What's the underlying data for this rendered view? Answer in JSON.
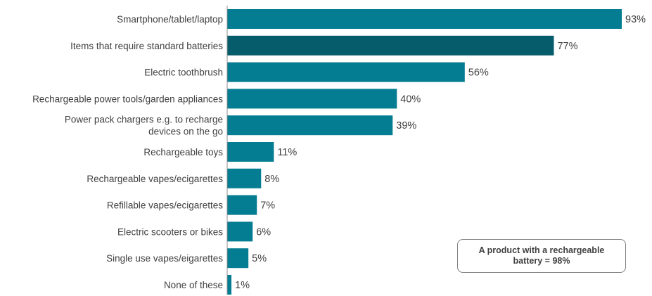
{
  "chart_data": {
    "type": "bar",
    "orientation": "horizontal",
    "categories": [
      [
        "Smartphone/tablet/laptop"
      ],
      [
        "Items that require standard batteries"
      ],
      [
        "Electric toothbrush"
      ],
      [
        "Rechargeable power tools/garden appliances"
      ],
      [
        "Power pack chargers e.g. to recharge",
        "devices on the go"
      ],
      [
        "Rechargeable toys"
      ],
      [
        "Rechargeable vapes/ecigarettes"
      ],
      [
        "Refillable vapes/ecigarettes"
      ],
      [
        "Electric scooters or bikes"
      ],
      [
        "Single use vapes/eigarettes"
      ],
      [
        "None of these"
      ]
    ],
    "values": [
      93,
      77,
      56,
      40,
      39,
      11,
      8,
      7,
      6,
      5,
      1
    ],
    "value_labels": [
      "93%",
      "77%",
      "56%",
      "40%",
      "39%",
      "11%",
      "8%",
      "7%",
      "6%",
      "5%",
      "1%"
    ],
    "unit": "%",
    "xlim": [
      0,
      100
    ],
    "grid": false,
    "legend": "none",
    "highlight_index": 1,
    "colors": {
      "bar": "#047c91",
      "highlight": "#075c6c",
      "axis": "#8c8c8c",
      "text": "#404040"
    }
  },
  "callout": {
    "line1": "A product with a rechargeable",
    "line2": "battery = 98%"
  }
}
